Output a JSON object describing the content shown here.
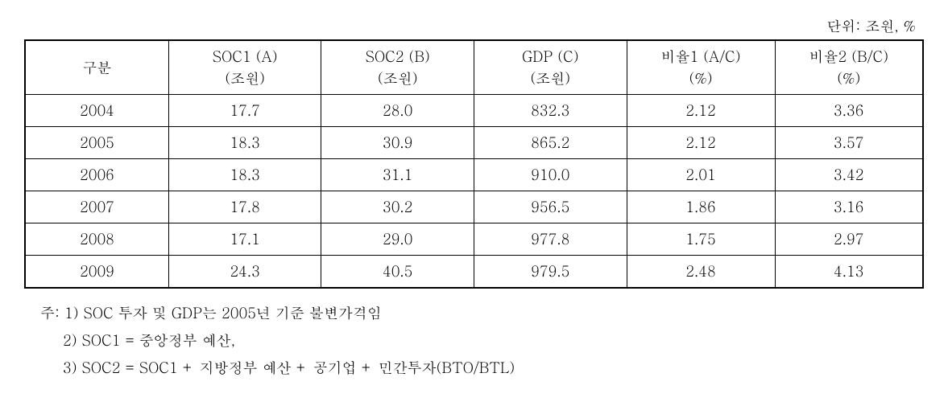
{
  "unit_label": "단위: 조원, %",
  "table": {
    "columns": [
      {
        "line1": "구분",
        "line2": ""
      },
      {
        "line1": "SOC1 (A)",
        "line2": "(조원)"
      },
      {
        "line1": "SOC2 (B)",
        "line2": "(조원)"
      },
      {
        "line1": "GDP (C)",
        "line2": "(조원)"
      },
      {
        "line1": "비율1 (A/C)",
        "line2": "(%)"
      },
      {
        "line1": "비율2 (B/C)",
        "line2": "(%)"
      }
    ],
    "rows": [
      [
        "2004",
        "17.7",
        "28.0",
        "832.3",
        "2.12",
        "3.36"
      ],
      [
        "2005",
        "18.3",
        "30.9",
        "865.2",
        "2.12",
        "3.57"
      ],
      [
        "2006",
        "18.3",
        "31.1",
        "910.0",
        "2.01",
        "3.42"
      ],
      [
        "2007",
        "17.8",
        "30.2",
        "956.5",
        "1.86",
        "3.16"
      ],
      [
        "2008",
        "17.1",
        "29.0",
        "977.8",
        "1.75",
        "2.97"
      ],
      [
        "2009",
        "24.3",
        "40.5",
        "979.5",
        "2.48",
        "4.13"
      ]
    ],
    "col_widths": [
      "16%",
      "17%",
      "17%",
      "17%",
      "16.5%",
      "16.5%"
    ]
  },
  "notes": [
    "주: 1) SOC 투자 및 GDP는 2005년 기준 불변가격임",
    "2) SOC1 = 중앙정부 예산,",
    "3) SOC2 = SOC1 + 지방정부 예산 + 공기업 + 민간투자(BTO/BTL)"
  ],
  "colors": {
    "background": "#ffffff",
    "text": "#000000",
    "border": "#000000"
  },
  "typography": {
    "base_fontsize": 18,
    "font_family": "Batang"
  }
}
